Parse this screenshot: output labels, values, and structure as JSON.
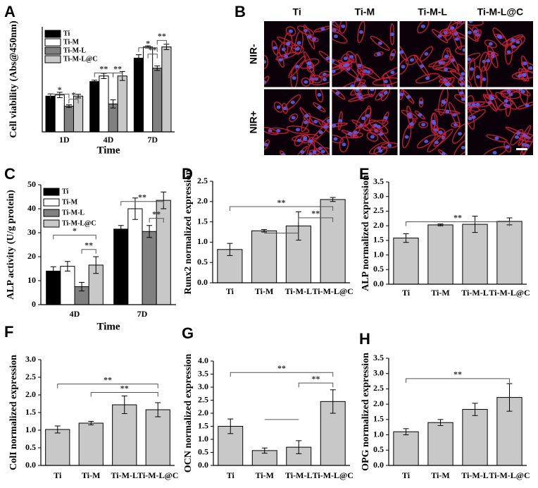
{
  "chart_data": [
    {
      "type": "bar",
      "panel": "A",
      "ylabel": "Cell viability (Abs@450nm)",
      "xlabel": "Time",
      "categories": [
        "1D",
        "4D",
        "7D"
      ],
      "ylim": [
        0,
        4.7
      ],
      "legend": "upper left",
      "series": [
        {
          "name": "Ti",
          "color": "#000000",
          "values": [
            1.6,
            2.25,
            3.3
          ],
          "errors": [
            0.1,
            0.06,
            0.15
          ]
        },
        {
          "name": "Ti-M",
          "color": "#ffffff",
          "values": [
            1.65,
            2.5,
            3.8
          ],
          "errors": [
            0.12,
            0.12,
            0.05
          ]
        },
        {
          "name": "Ti-M-L",
          "color": "#808080",
          "values": [
            1.15,
            1.25,
            2.85
          ],
          "errors": [
            0.06,
            0.18,
            0.1
          ]
        },
        {
          "name": "Ti-M-L@C",
          "color": "#c8c8c8",
          "values": [
            1.6,
            2.5,
            3.8
          ],
          "errors": [
            0.08,
            0.2,
            0.12
          ]
        }
      ],
      "significance": [
        "*",
        "*",
        "**",
        "**",
        "*",
        "**",
        "**"
      ]
    },
    {
      "type": "image",
      "panel": "B",
      "columns": [
        "Ti",
        "Ti-M",
        "Ti-M-L",
        "Ti-M-L@C"
      ],
      "rows": [
        "NIR-",
        "NIR+"
      ]
    },
    {
      "type": "bar",
      "panel": "C",
      "ylabel": "ALP activity (U/g protein)",
      "xlabel": "Time",
      "categories": [
        "4D",
        "7D"
      ],
      "ylim": [
        0,
        50
      ],
      "yticks": [
        0,
        10,
        20,
        30,
        40,
        50
      ],
      "legend": "upper left",
      "series": [
        {
          "name": "Ti",
          "color": "#000000",
          "values": [
            14,
            31.5
          ],
          "errors": [
            1.8,
            1.5
          ]
        },
        {
          "name": "Ti-M",
          "color": "#ffffff",
          "values": [
            16,
            40
          ],
          "errors": [
            2,
            4.5
          ]
        },
        {
          "name": "Ti-M-L",
          "color": "#808080",
          "values": [
            7.5,
            30.5
          ],
          "errors": [
            1.8,
            2.5
          ]
        },
        {
          "name": "Ti-M-L@C",
          "color": "#c8c8c8",
          "values": [
            16.5,
            43.5
          ],
          "errors": [
            3.5,
            3.5
          ]
        }
      ],
      "significance": [
        "*",
        "**",
        "**",
        "**"
      ]
    },
    {
      "type": "bar",
      "panel": "D",
      "ylabel": "Runx2 normalized expression",
      "color": "#c8c8c8",
      "categories": [
        "Ti",
        "Ti-M",
        "Ti-M-L",
        "Ti-M-L@C"
      ],
      "values": [
        0.82,
        1.28,
        1.4,
        2.05
      ],
      "errors": [
        0.15,
        0.03,
        0.35,
        0.05
      ],
      "ylim": [
        0,
        2.5
      ],
      "yticks": [
        {
          "value": 0,
          "label": "0.0"
        },
        0.5,
        {
          "value": 1,
          "label": "1.0"
        },
        1.5,
        {
          "value": 2,
          "label": "2.0"
        },
        2.5
      ],
      "significance": [
        "**",
        "**"
      ]
    },
    {
      "type": "bar",
      "panel": "E",
      "ylabel": "ALP normalized expression",
      "color": "#c8c8c8",
      "categories": [
        "Ti",
        "Ti-M",
        "Ti-M-L",
        "Ti-M-L@C"
      ],
      "values": [
        1.58,
        2.03,
        2.05,
        2.15
      ],
      "errors": [
        0.15,
        0.03,
        0.28,
        0.12
      ],
      "ylim": [
        0,
        3.5
      ],
      "yticks": [
        {
          "value": 0,
          "label": "0.0"
        },
        0.5,
        {
          "value": 1,
          "label": "1.0"
        },
        1.5,
        {
          "value": 2,
          "label": "2.0"
        },
        2.5,
        {
          "value": 3,
          "label": "3.0"
        },
        3.5
      ],
      "significance": [
        "**"
      ]
    },
    {
      "type": "bar",
      "panel": "F",
      "ylabel": "ColI normalized expression",
      "color": "#c8c8c8",
      "categories": [
        "Ti",
        "Ti-M",
        "Ti-M-L",
        "Ti-M-L@C"
      ],
      "values": [
        1.02,
        1.2,
        1.72,
        1.58
      ],
      "errors": [
        0.1,
        0.05,
        0.25,
        0.2
      ],
      "ylim": [
        0,
        3
      ],
      "yticks": [
        {
          "value": 0,
          "label": "0.0"
        },
        0.5,
        {
          "value": 1,
          "label": "1.0"
        },
        1.5,
        {
          "value": 2,
          "label": "2.0"
        },
        2.5,
        {
          "value": 3,
          "label": "3.0"
        }
      ],
      "significance": [
        "**",
        "**"
      ]
    },
    {
      "type": "bar",
      "panel": "G",
      "ylabel": "OCN normalized expression",
      "color": "#c8c8c8",
      "categories": [
        "Ti",
        "Ti-M",
        "Ti-M-L",
        "Ti-M-L@C"
      ],
      "values": [
        1.5,
        0.57,
        0.7,
        2.45
      ],
      "errors": [
        0.28,
        0.1,
        0.25,
        0.45
      ],
      "ylim": [
        0,
        4
      ],
      "yticks": [
        {
          "value": 0,
          "label": "0.0"
        },
        0.5,
        {
          "value": 1,
          "label": "1.0"
        },
        1.5,
        {
          "value": 2,
          "label": "2.0"
        },
        2.5,
        {
          "value": 3,
          "label": "3.0"
        },
        3.5,
        {
          "value": 4,
          "label": "4.0"
        }
      ],
      "significance": [
        "**",
        "**"
      ]
    },
    {
      "type": "bar",
      "panel": "H",
      "ylabel": "OPG normalized expression",
      "color": "#c8c8c8",
      "categories": [
        "Ti",
        "Ti-M",
        "Ti-M-L",
        "Ti-M-L@C"
      ],
      "values": [
        1.1,
        1.4,
        1.83,
        2.22
      ],
      "errors": [
        0.1,
        0.1,
        0.2,
        0.45
      ],
      "ylim": [
        0,
        3.5
      ],
      "yticks": [
        {
          "value": 0,
          "label": "0.0"
        },
        0.5,
        {
          "value": 1,
          "label": "1.0"
        },
        1.5,
        {
          "value": 2,
          "label": "2.0"
        },
        2.5,
        {
          "value": 3,
          "label": "3.0"
        },
        3.5
      ],
      "significance": [
        "**"
      ]
    }
  ]
}
